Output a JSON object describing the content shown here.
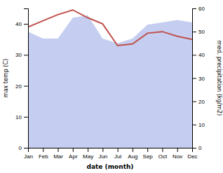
{
  "chart_data": {
    "type": "line",
    "xlabel": "date (month)",
    "ylabel": "max temp (C)",
    "y2label": "med. precipitation (kg/m2)",
    "categories": [
      "Jan",
      "Feb",
      "Mar",
      "Apr",
      "May",
      "Jun",
      "Jul",
      "Aug",
      "Sep",
      "Oct",
      "Nov",
      "Dec"
    ],
    "series": [
      {
        "type": "area",
        "axis": "y2",
        "color": "#c5cef0",
        "values": [
          50,
          47,
          47,
          56,
          57,
          47,
          45,
          47,
          53,
          54,
          55,
          54
        ]
      },
      {
        "type": "line",
        "color": "#c0504d",
        "values": [
          39,
          41,
          43,
          44.5,
          42,
          40,
          33,
          33.5,
          37,
          37.5,
          36,
          35
        ]
      }
    ],
    "ylim": [
      0,
      45
    ],
    "yticks": [
      0,
      10,
      20,
      30,
      40
    ],
    "y2lim": [
      0,
      60
    ],
    "y2ticks": [
      0,
      10,
      20,
      30,
      40,
      50,
      60
    ],
    "grid": false
  }
}
